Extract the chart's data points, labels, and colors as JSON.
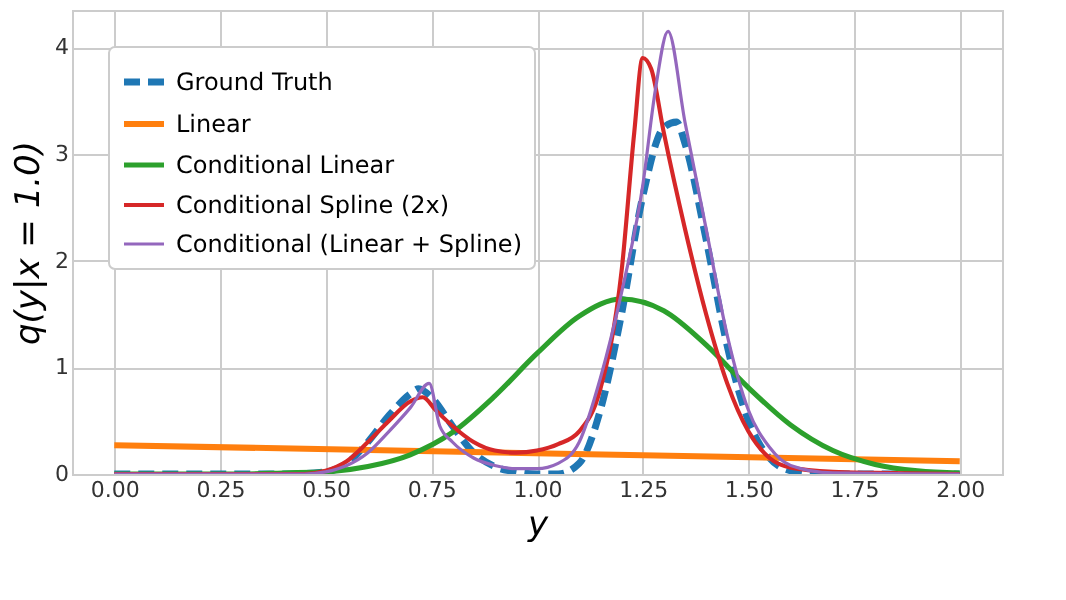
{
  "chart_data": {
    "type": "line",
    "xlabel": "y",
    "ylabel": "q(y|x = 1.0)",
    "xlim": [
      -0.1,
      2.1
    ],
    "ylim": [
      0,
      4.35
    ],
    "xticks": [
      {
        "value": 0,
        "label": "0.00"
      },
      {
        "value": 0.25,
        "label": "0.25"
      },
      {
        "value": 0.5,
        "label": "0.50"
      },
      {
        "value": 0.75,
        "label": "0.75"
      },
      {
        "value": 1,
        "label": "1.00"
      },
      {
        "value": 1.25,
        "label": "1.25"
      },
      {
        "value": 1.5,
        "label": "1.50"
      },
      {
        "value": 1.75,
        "label": "1.75"
      },
      {
        "value": 2,
        "label": "2.00"
      }
    ],
    "yticks": [
      0,
      1,
      2,
      3,
      4
    ],
    "grid": true,
    "legend": "top left",
    "marker": "none",
    "series": [
      {
        "name": "Ground Truth",
        "color": "#1f77b4",
        "line_style": "dashed",
        "x": [
          0,
          0.4,
          0.5,
          0.55,
          0.6,
          0.65,
          0.7,
          0.72,
          0.75,
          0.8,
          0.85,
          0.9,
          0.95,
          1.0,
          1.05,
          1.1,
          1.15,
          1.2,
          1.25,
          1.3,
          1.33,
          1.35,
          1.4,
          1.45,
          1.5,
          1.55,
          1.6,
          1.65,
          1.7,
          2.0
        ],
        "values": [
          0,
          0,
          0.02,
          0.1,
          0.3,
          0.55,
          0.75,
          0.8,
          0.72,
          0.45,
          0.2,
          0.07,
          0.02,
          0,
          0,
          0.1,
          0.6,
          1.5,
          2.6,
          3.25,
          3.3,
          3.1,
          2.2,
          1.2,
          0.5,
          0.15,
          0.03,
          0,
          0,
          0
        ]
      },
      {
        "name": "Linear",
        "color": "#ff7f0e",
        "line_style": "solid",
        "x": [
          0,
          2
        ],
        "values": [
          0.27,
          0.12
        ]
      },
      {
        "name": "Conditional Linear",
        "color": "#2ca02c",
        "line_style": "solid",
        "x": [
          0,
          0.1,
          0.2,
          0.3,
          0.4,
          0.5,
          0.6,
          0.7,
          0.8,
          0.9,
          1.0,
          1.1,
          1.2,
          1.3,
          1.4,
          1.5,
          1.6,
          1.7,
          1.8,
          1.9,
          2.0
        ],
        "values": [
          0,
          0,
          0,
          0,
          0.01,
          0.02,
          0.07,
          0.18,
          0.39,
          0.73,
          1.13,
          1.48,
          1.64,
          1.53,
          1.21,
          0.81,
          0.46,
          0.22,
          0.09,
          0.03,
          0.01
        ]
      },
      {
        "name": "Conditional Spline (2x)",
        "color": "#d62728",
        "line_style": "solid",
        "x": [
          0,
          0.45,
          0.5,
          0.55,
          0.6,
          0.65,
          0.7,
          0.73,
          0.76,
          0.8,
          0.85,
          0.9,
          0.95,
          1.0,
          1.05,
          1.1,
          1.15,
          1.2,
          1.23,
          1.25,
          1.27,
          1.3,
          1.35,
          1.4,
          1.45,
          1.5,
          1.55,
          1.6,
          1.7,
          1.8,
          2.0
        ],
        "values": [
          0,
          0,
          0.03,
          0.12,
          0.3,
          0.5,
          0.68,
          0.72,
          0.6,
          0.45,
          0.3,
          0.22,
          0.2,
          0.22,
          0.28,
          0.4,
          0.8,
          1.9,
          3.2,
          3.9,
          3.8,
          3.2,
          2.3,
          1.5,
          0.85,
          0.4,
          0.15,
          0.06,
          0.02,
          0.01,
          0
        ]
      },
      {
        "name": "Conditional (Linear + Spline)",
        "color": "#9467bd",
        "line_style": "solid",
        "x": [
          0,
          0.45,
          0.5,
          0.55,
          0.6,
          0.65,
          0.7,
          0.745,
          0.77,
          0.8,
          0.85,
          0.9,
          0.95,
          1.0,
          1.05,
          1.1,
          1.15,
          1.2,
          1.25,
          1.28,
          1.31,
          1.35,
          1.4,
          1.45,
          1.5,
          1.55,
          1.6,
          1.7,
          2.0
        ],
        "values": [
          0,
          0,
          0.02,
          0.08,
          0.2,
          0.4,
          0.62,
          0.85,
          0.45,
          0.3,
          0.15,
          0.08,
          0.05,
          0.05,
          0.1,
          0.3,
          0.9,
          1.7,
          2.7,
          3.6,
          4.15,
          3.3,
          2.3,
          1.3,
          0.6,
          0.25,
          0.08,
          0.01,
          0
        ]
      }
    ]
  }
}
